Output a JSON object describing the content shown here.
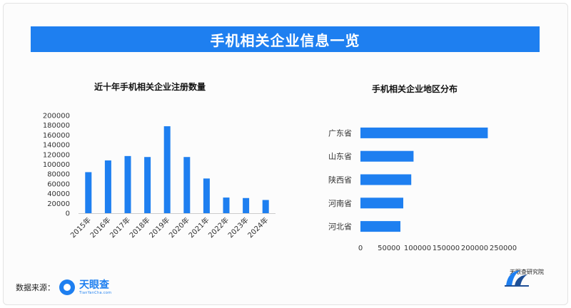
{
  "banner": {
    "title": "手机相关企业信息一览"
  },
  "footer": {
    "source_label": "数据来源：",
    "logo_text": "天眼查",
    "logo_sub": "TianYanCha.com",
    "institute_text": "天眼查研究院"
  },
  "colors": {
    "accent": "#1e7ff0",
    "bar": "#1e7ff0"
  },
  "chart_data": [
    {
      "type": "bar",
      "title": "近十年手机相关企业注册数量",
      "categories": [
        "2015年",
        "2016年",
        "2017年",
        "2018年",
        "2019年",
        "2020年",
        "2021年",
        "2022年",
        "2023年",
        "2024年"
      ],
      "values": [
        84000,
        108000,
        117000,
        115000,
        178000,
        115000,
        71000,
        32000,
        31000,
        27000
      ],
      "xlabel": "",
      "ylabel": "",
      "ylim": [
        0,
        200000
      ],
      "yticks": [
        0,
        20000,
        40000,
        60000,
        80000,
        100000,
        120000,
        140000,
        160000,
        180000,
        200000
      ],
      "grid": false,
      "legend": "none"
    },
    {
      "type": "bar",
      "orientation": "horizontal",
      "title": "手机相关企业地区分布",
      "categories": [
        "广东省",
        "山东省",
        "陕西省",
        "河南省",
        "河北省"
      ],
      "values": [
        223000,
        93000,
        89000,
        75000,
        70000
      ],
      "xlabel": "",
      "ylabel": "",
      "xlim": [
        0,
        250000
      ],
      "xticks": [
        0,
        50000,
        100000,
        150000,
        200000,
        250000
      ],
      "grid": false,
      "legend": "none"
    }
  ]
}
